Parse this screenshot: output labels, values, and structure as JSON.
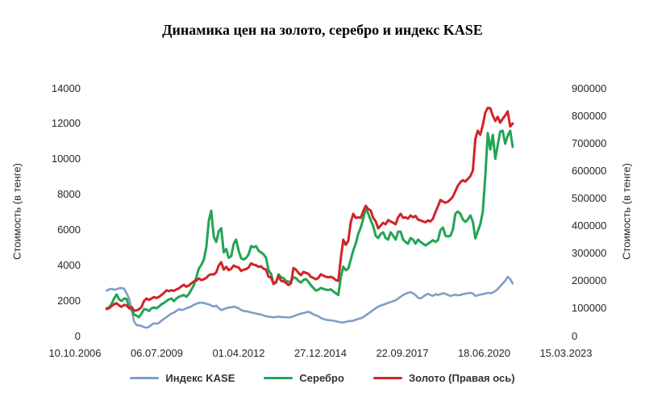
{
  "title": "Динамика цен на золото, серебро и индекс KASE",
  "chart_data": {
    "type": "line",
    "title": "Динамика цен на золото, серебро и индекс KASE",
    "grid": false,
    "legend_position": "bottom",
    "left_axis": {
      "label": "Стоимость (в тенге)",
      "min": 0,
      "max": 14000,
      "ticks": [
        0,
        2000,
        4000,
        6000,
        8000,
        10000,
        12000,
        14000
      ]
    },
    "right_axis": {
      "label": "Стоимость (в тенге)",
      "min": 0,
      "max": 900000,
      "ticks": [
        0,
        100000,
        200000,
        300000,
        400000,
        500000,
        600000,
        700000,
        800000,
        900000
      ]
    },
    "x_axis": {
      "tick_labels": [
        "10.10.2006",
        "06.07.2009",
        "01.04.2012",
        "27.12.2014",
        "22.09.2017",
        "18.06.2020",
        "15.03.2023"
      ],
      "tick_step_days": 1000,
      "total_days": 6000,
      "data_start_label": "11.2007",
      "data_end_label": "06.2021",
      "data_start_day": 387,
      "data_step_days": 30.44
    },
    "series": [
      {
        "id": "kase",
        "name": "Индекс KASE",
        "axis": "left",
        "color": "#7D9EC6",
        "width": 2.6,
        "values": [
          2550,
          2620,
          2650,
          2600,
          2620,
          2680,
          2700,
          2650,
          2400,
          2100,
          1500,
          800,
          600,
          580,
          550,
          480,
          450,
          500,
          620,
          700,
          680,
          720,
          850,
          950,
          1050,
          1150,
          1250,
          1300,
          1400,
          1500,
          1450,
          1480,
          1550,
          1600,
          1650,
          1750,
          1800,
          1850,
          1870,
          1850,
          1800,
          1780,
          1700,
          1650,
          1700,
          1550,
          1450,
          1500,
          1550,
          1600,
          1600,
          1640,
          1600,
          1550,
          1450,
          1400,
          1380,
          1350,
          1320,
          1280,
          1250,
          1220,
          1200,
          1150,
          1100,
          1080,
          1060,
          1040,
          1060,
          1080,
          1060,
          1050,
          1040,
          1030,
          1050,
          1100,
          1150,
          1200,
          1250,
          1280,
          1320,
          1350,
          1300,
          1200,
          1150,
          1100,
          1000,
          950,
          900,
          880,
          870,
          850,
          820,
          780,
          760,
          750,
          780,
          820,
          830,
          850,
          900,
          950,
          980,
          1050,
          1150,
          1250,
          1350,
          1450,
          1550,
          1640,
          1700,
          1750,
          1800,
          1850,
          1900,
          1950,
          2000,
          2100,
          2200,
          2300,
          2370,
          2420,
          2460,
          2400,
          2300,
          2150,
          2100,
          2200,
          2300,
          2370,
          2300,
          2250,
          2350,
          2300,
          2350,
          2400,
          2370,
          2300,
          2250,
          2280,
          2320,
          2280,
          2300,
          2350,
          2370,
          2400,
          2420,
          2380,
          2250,
          2280,
          2320,
          2350,
          2380,
          2420,
          2400,
          2440,
          2520,
          2640,
          2800,
          2950,
          3100,
          3330,
          3200,
          2950
        ]
      },
      {
        "id": "silver",
        "name": "Серебро",
        "axis": "left",
        "color": "#22A455",
        "width": 3,
        "values": [
          1550,
          1600,
          1800,
          2100,
          2330,
          2050,
          1960,
          2100,
          2080,
          1600,
          1450,
          1200,
          1130,
          1050,
          1250,
          1500,
          1480,
          1400,
          1550,
          1600,
          1550,
          1650,
          1780,
          1850,
          1950,
          2050,
          2100,
          1950,
          2100,
          2200,
          2250,
          2300,
          2200,
          2350,
          2600,
          2850,
          3300,
          3800,
          4000,
          4300,
          5000,
          6500,
          7070,
          5600,
          5300,
          5900,
          6070,
          4700,
          4900,
          4400,
          4500,
          5200,
          5430,
          4800,
          4380,
          4300,
          4400,
          4600,
          5060,
          5000,
          5060,
          4800,
          4700,
          4600,
          4400,
          3690,
          3500,
          2920,
          3000,
          3470,
          3300,
          3250,
          3100,
          3050,
          3050,
          3300,
          3250,
          3100,
          3000,
          3150,
          3200,
          3050,
          2850,
          2700,
          2550,
          2600,
          2700,
          2650,
          2600,
          2580,
          2620,
          2500,
          2400,
          2300,
          3300,
          3900,
          3700,
          3800,
          4300,
          4830,
          5200,
          5750,
          6100,
          6600,
          7200,
          6900,
          6520,
          6200,
          5650,
          5520,
          5750,
          5840,
          5520,
          5430,
          5840,
          5650,
          5430,
          5880,
          5880,
          5430,
          5300,
          5200,
          5520,
          5430,
          5200,
          5430,
          5300,
          5200,
          5100,
          5200,
          5290,
          5400,
          5300,
          5400,
          5970,
          6110,
          5650,
          5610,
          5650,
          6000,
          6890,
          7020,
          6890,
          6570,
          6430,
          6570,
          6800,
          6430,
          5500,
          5900,
          6300,
          7000,
          9000,
          11450,
          10530,
          11350,
          9990,
          10800,
          11540,
          11580,
          10850,
          11300,
          11580,
          10670
        ]
      },
      {
        "id": "gold",
        "name": "Золото (Правая ось)",
        "axis": "right",
        "color": "#D1232A",
        "width": 3,
        "values": [
          97000,
          100000,
          108000,
          114000,
          118000,
          110000,
          105000,
          112000,
          110000,
          100000,
          104000,
          91000,
          92000,
          96000,
          104000,
          126000,
          135000,
          130000,
          135000,
          140000,
          137000,
          141000,
          148000,
          155000,
          165000,
          162000,
          165000,
          163000,
          168000,
          172000,
          179000,
          185000,
          178000,
          182000,
          190000,
          197000,
          200000,
          208000,
          202000,
          205000,
          210000,
          220000,
          223000,
          222000,
          230000,
          255000,
          267000,
          240000,
          250000,
          238000,
          243000,
          255000,
          250000,
          248000,
          235000,
          240000,
          242000,
          248000,
          263000,
          258000,
          256000,
          250000,
          252000,
          243000,
          240000,
          214000,
          212000,
          188000,
          196000,
          217000,
          199000,
          198000,
          192000,
          184000,
          190000,
          246000,
          240000,
          228000,
          220000,
          232000,
          228000,
          225000,
          214000,
          210000,
          205000,
          210000,
          223000,
          218000,
          214000,
          212000,
          214000,
          210000,
          202000,
          199000,
          280000,
          349000,
          330000,
          345000,
          413000,
          443000,
          428000,
          430000,
          428000,
          452000,
          472000,
          460000,
          455000,
          428000,
          415000,
          390000,
          400000,
          410000,
          405000,
          420000,
          415000,
          410000,
          405000,
          430000,
          443000,
          428000,
          430000,
          425000,
          437000,
          430000,
          435000,
          422000,
          419000,
          415000,
          412000,
          419000,
          415000,
          425000,
          449000,
          470000,
          493000,
          487000,
          483000,
          487000,
          495000,
          505000,
          525000,
          545000,
          558000,
          565000,
          560000,
          570000,
          580000,
          600000,
          715000,
          745000,
          730000,
          765000,
          810000,
          828000,
          826000,
          800000,
          780000,
          795000,
          774000,
          788000,
          800000,
          815000,
          760000,
          771000
        ]
      }
    ]
  }
}
